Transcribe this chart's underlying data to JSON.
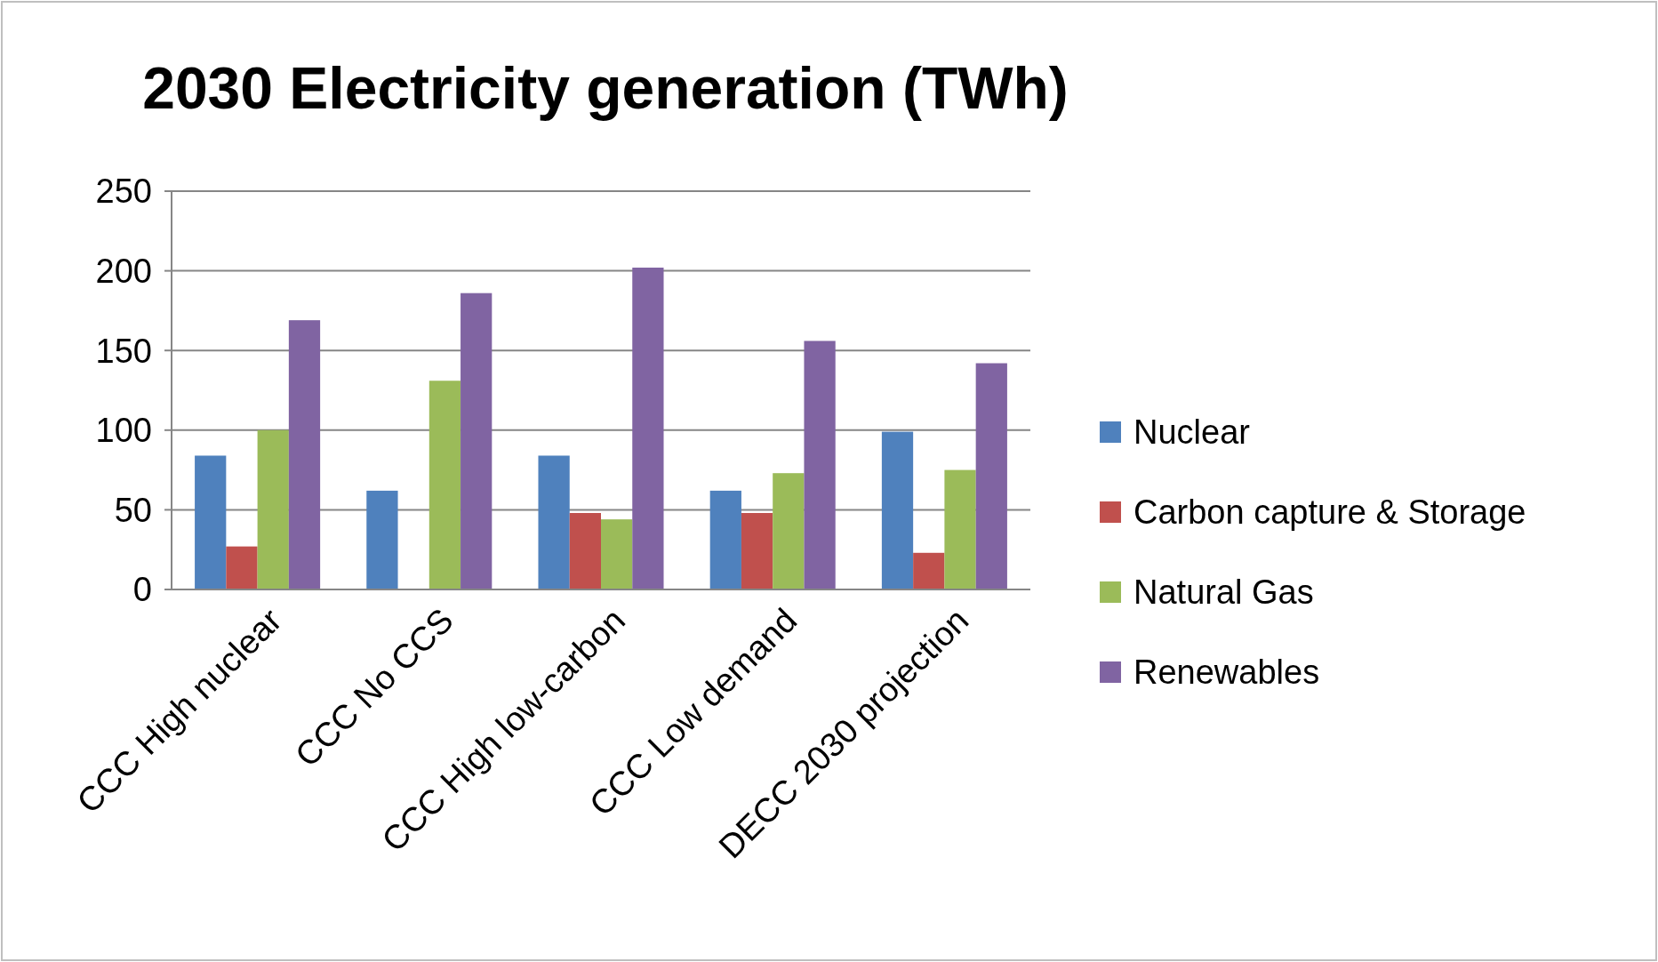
{
  "chart_data": {
    "type": "bar",
    "title": "2030 Electricity generation (TWh)",
    "categories": [
      "CCC High nuclear",
      "CCC No CCS",
      "CCC High low-carbon",
      "CCC Low demand",
      "DECC 2030 projection"
    ],
    "series": [
      {
        "name": "Nuclear",
        "color": "#4f81bd",
        "values": [
          84,
          62,
          84,
          62,
          99
        ]
      },
      {
        "name": "Carbon capture & Storage",
        "color": "#c0504d",
        "values": [
          27,
          0,
          48,
          48,
          23
        ]
      },
      {
        "name": "Natural Gas",
        "color": "#9bbb59",
        "values": [
          100,
          131,
          44,
          73,
          75
        ]
      },
      {
        "name": "Renewables",
        "color": "#8064a2",
        "values": [
          169,
          186,
          202,
          156,
          142
        ]
      }
    ],
    "ylim": [
      0,
      250
    ],
    "yticks": [
      0,
      50,
      100,
      150,
      200,
      250
    ],
    "grid": "y",
    "legend": "right"
  }
}
